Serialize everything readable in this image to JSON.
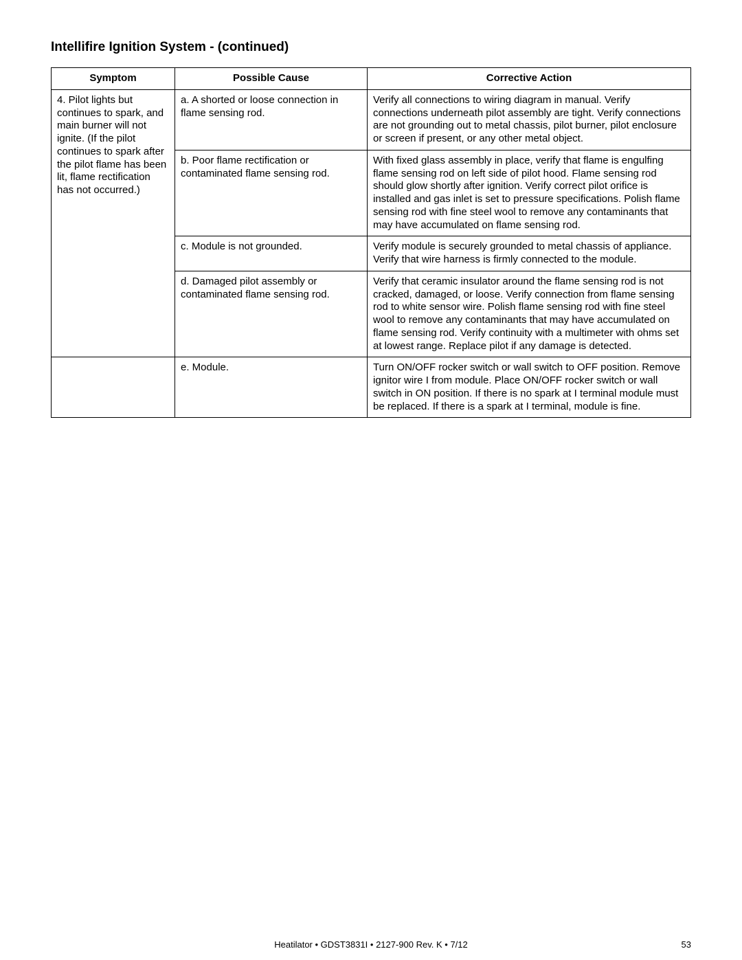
{
  "title": "Intelliﬁre Ignition System - (continued)",
  "table": {
    "headers": {
      "symptom": "Symptom",
      "cause": "Possible Cause",
      "action": "Corrective Action"
    },
    "symptom4": "4. Pilot lights but continues to spark, and main burner will not ignite. (If the pilot continues to spark after the pilot ﬂame has been lit, ﬂame rectiﬁcation has not occurred.)",
    "rows": [
      {
        "cause": "a.  A shorted or loose connection in ﬂame sensing rod.",
        "action": "Verify all connections to wiring diagram in manual. Verify connections underneath pilot assembly are tight. Verify connections are not grounding out to metal chassis, pilot burner, pilot enclosure or screen if present, or any other metal object."
      },
      {
        "cause": "b.  Poor ﬂame rectiﬁcation or contaminated ﬂame sensing rod.",
        "action": "With ﬁxed glass assembly in place, verify that ﬂame is engulﬁng ﬂame sensing rod on left side of pilot hood. Flame sensing rod should glow shortly after ignition.  Verify correct pilot oriﬁce is installed and gas inlet is set to  pressure speciﬁcations. Polish ﬂame sensing rod with ﬁne steel wool to remove any contaminants that may have accumulated on ﬂame sensing rod."
      },
      {
        "cause": "c.  Module is not grounded.",
        "action": "Verify module is securely grounded to metal chassis of appliance.  Verify that wire harness is ﬁrmly connected to the module."
      },
      {
        "cause": "d. Damaged pilot assembly or contaminated ﬂame sensing rod.",
        "action": "Verify that ceramic insulator around the ﬂame sensing rod is not cracked, damaged, or loose. Verify connection from ﬂame sensing rod to white sensor wire. Polish ﬂame sensing rod with ﬁne steel wool to remove any contaminants that may have accumulated on ﬂame sensing rod. Verify continuity with a multimeter with ohms set at lowest range. Replace pilot if any damage is detected."
      },
      {
        "cause": "e.  Module.",
        "action": "Turn ON/OFF rocker switch or wall switch to OFF position. Remove ignitor wire  I  from module. Place ON/OFF rocker switch or wall switch in ON position. If there is no spark at  I  terminal module must be replaced. If there is a spark at  I  terminal, module is ﬁne."
      }
    ]
  },
  "footer": {
    "text": "Heatilator  •  GDST3831I  •  2127-900 Rev. K  •  7/12",
    "page": "53"
  }
}
